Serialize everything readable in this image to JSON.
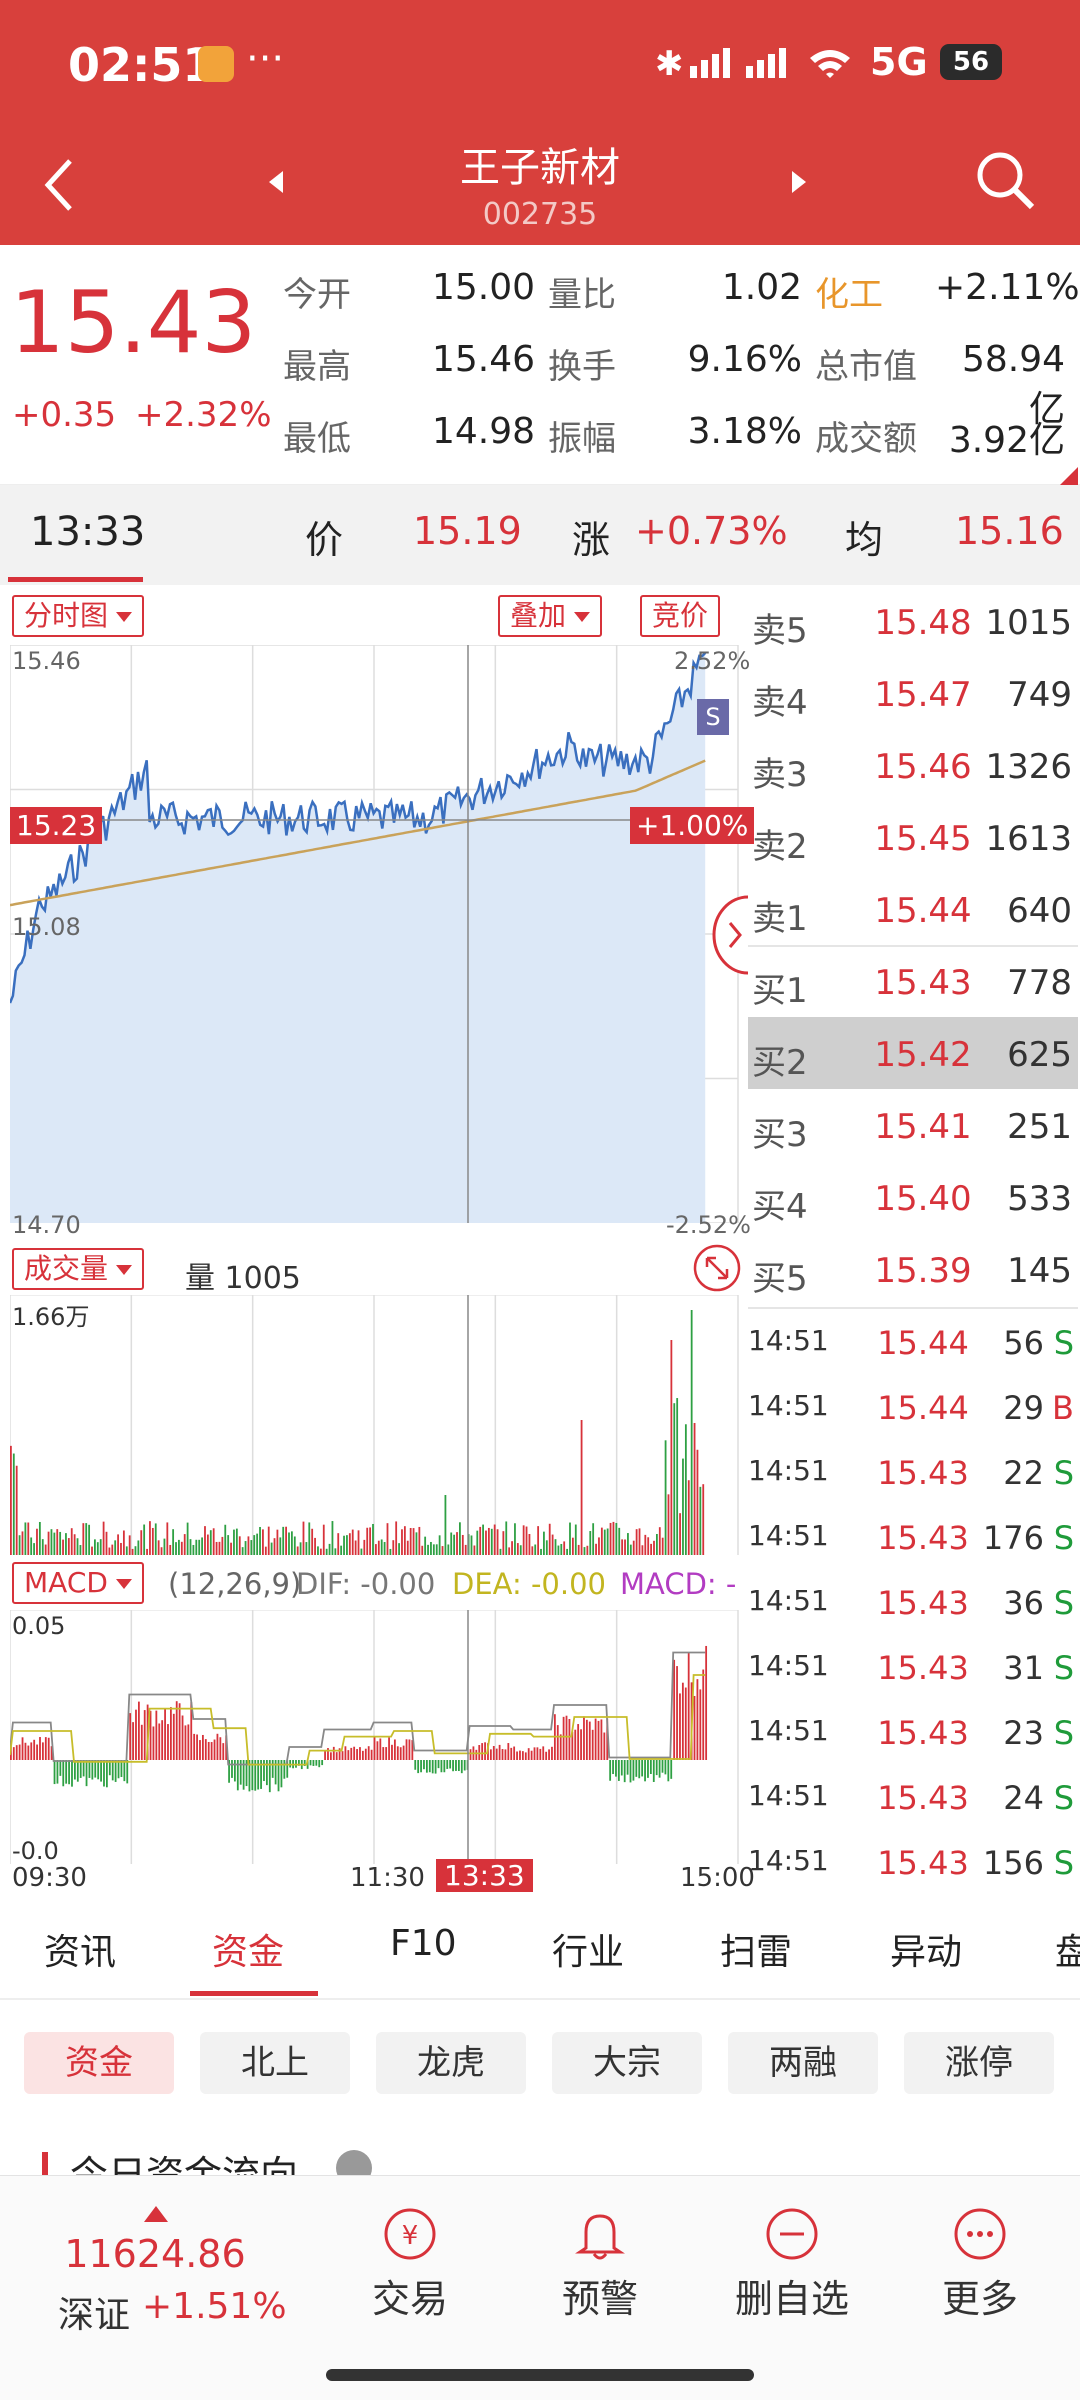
{
  "status": {
    "time": "02:51",
    "more": "···",
    "network": "5G",
    "battery": "56"
  },
  "nav": {
    "title": "王子新材",
    "code": "002735"
  },
  "quote": {
    "price": "15.43",
    "change": "+0.35",
    "change_pct": "+2.32%",
    "rows": [
      {
        "l1": "今开",
        "v1": "15.00",
        "l2": "量比",
        "v2": "1.02",
        "l3": "化工",
        "v3": "+2.11%"
      },
      {
        "l1": "最高",
        "v1": "15.46",
        "l2": "换手",
        "v2": "9.16%",
        "l3": "总市值",
        "v3": "58.94亿"
      },
      {
        "l1": "最低",
        "v1": "14.98",
        "l2": "振幅",
        "v2": "3.18%",
        "l3": "成交额",
        "v3": "3.92亿"
      }
    ]
  },
  "timebar": {
    "time": "13:33",
    "price_label": "价",
    "price": "15.19",
    "chg_label": "涨",
    "chg": "+0.73%",
    "avg_label": "均",
    "avg": "15.16"
  },
  "chart": {
    "mode_btn": "分时图",
    "overlay_btn": "叠加",
    "auction_btn": "竞价",
    "y_top": "15.46",
    "y_bottom": "14.70",
    "pct_top": "2.52%",
    "pct_bottom": "-2.52%",
    "cursor_price": "15.23",
    "cursor_pct": "+1.00%",
    "ref_price": "15.08",
    "s_marker": "S",
    "vol_btn": "成交量",
    "vol_label": "量 1005",
    "vol_max": "1.66万",
    "macd_btn": "MACD",
    "macd_params": "(12,26,9)",
    "dif": "DIF: -0.00",
    "dea": "DEA: -0.00",
    "macd": "MACD: -",
    "macd_top": "0.05",
    "macd_bottom": "-0.0",
    "x_start": "09:30",
    "x_mid": "11:30",
    "x_cursor": "13:33",
    "x_end": "15:00",
    "colors": {
      "line": "#3a6fbf",
      "avg": "#c9a25a",
      "fill": "#dce8f7",
      "up": "#d7323a",
      "down": "#2ea043"
    }
  },
  "orderbook": [
    {
      "side": "卖5",
      "price": "15.48",
      "vol": "1015"
    },
    {
      "side": "卖4",
      "price": "15.47",
      "vol": "749"
    },
    {
      "side": "卖3",
      "price": "15.46",
      "vol": "1326"
    },
    {
      "side": "卖2",
      "price": "15.45",
      "vol": "1613"
    },
    {
      "side": "卖1",
      "price": "15.44",
      "vol": "640"
    },
    {
      "side": "买1",
      "price": "15.43",
      "vol": "778"
    },
    {
      "side": "买2",
      "price": "15.42",
      "vol": "625"
    },
    {
      "side": "买3",
      "price": "15.41",
      "vol": "251"
    },
    {
      "side": "买4",
      "price": "15.40",
      "vol": "533"
    },
    {
      "side": "买5",
      "price": "15.39",
      "vol": "145"
    }
  ],
  "ticks": [
    {
      "time": "14:51",
      "price": "15.44",
      "vol": "56",
      "dir": "S"
    },
    {
      "time": "14:51",
      "price": "15.44",
      "vol": "29",
      "dir": "B"
    },
    {
      "time": "14:51",
      "price": "15.43",
      "vol": "22",
      "dir": "S"
    },
    {
      "time": "14:51",
      "price": "15.43",
      "vol": "176",
      "dir": "S"
    },
    {
      "time": "14:51",
      "price": "15.43",
      "vol": "36",
      "dir": "S"
    },
    {
      "time": "14:51",
      "price": "15.43",
      "vol": "31",
      "dir": "S"
    },
    {
      "time": "14:51",
      "price": "15.43",
      "vol": "23",
      "dir": "S"
    },
    {
      "time": "14:51",
      "price": "15.43",
      "vol": "24",
      "dir": "S"
    },
    {
      "time": "14:51",
      "price": "15.43",
      "vol": "156",
      "dir": "S"
    }
  ],
  "tabs": [
    "资讯",
    "资金",
    "F10",
    "行业",
    "扫雷",
    "异动",
    "盘"
  ],
  "subtabs": [
    "资金",
    "北上",
    "龙虎",
    "大宗",
    "两融",
    "涨停"
  ],
  "section_title": "今日资金流向",
  "bottom": {
    "index_value": "11624.86",
    "index_name": "深证",
    "index_chg": "+1.51%",
    "items": [
      "交易",
      "预警",
      "删自选",
      "更多"
    ]
  }
}
